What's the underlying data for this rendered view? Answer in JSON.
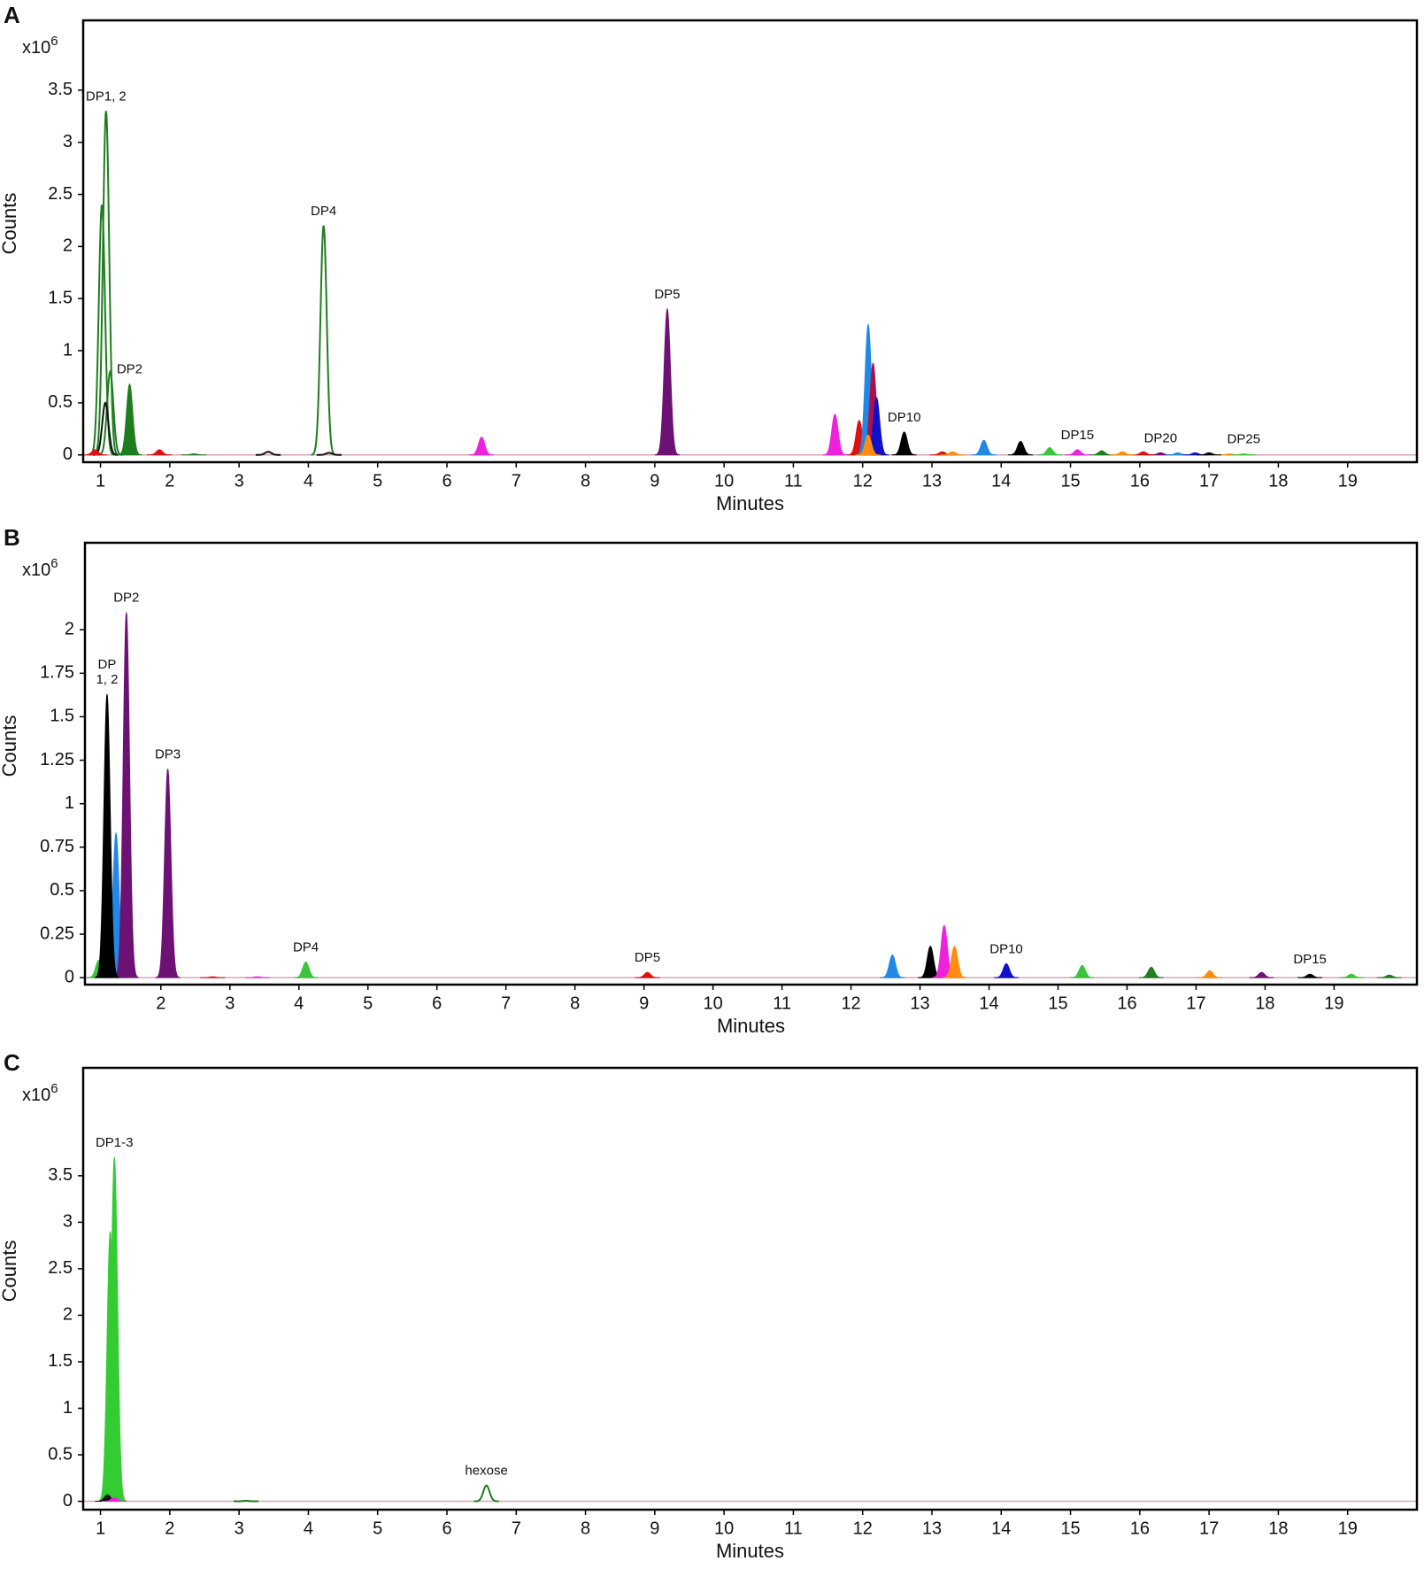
{
  "chart_data": [
    {
      "type": "chromatogram",
      "panel": "A",
      "xlabel": "Minutes",
      "ylabel": "Counts",
      "ylabel_unit": "x10",
      "ylabel_unit_power": "6",
      "xlim": [
        0.75,
        20
      ],
      "xticks": [
        1,
        2,
        3,
        4,
        5,
        6,
        7,
        8,
        9,
        10,
        11,
        12,
        13,
        14,
        15,
        16,
        17,
        18,
        19
      ],
      "ylim": [
        -0.07,
        4.17
      ],
      "yticks": [
        0,
        0.5,
        1,
        1.5,
        2,
        2.5,
        3,
        3.5
      ],
      "series": [
        {
          "color": "#1e7d1e",
          "filled": false,
          "x": [
            1.02,
            1.08,
            1.14,
            4.22
          ],
          "values": [
            2.4,
            3.3,
            0.8,
            2.2
          ]
        },
        {
          "color": "#111111",
          "filled": false,
          "x": [
            1.07,
            3.42,
            4.3
          ],
          "values": [
            0.5,
            0.03,
            0.02
          ]
        },
        {
          "color": "#1e7d1e",
          "filled": true,
          "x": [
            1.42,
            2.35,
            15.45
          ],
          "values": [
            0.68,
            0.01,
            0.04
          ]
        },
        {
          "color": "#6e1174",
          "filled": true,
          "x": [
            9.18,
            16.3
          ],
          "values": [
            1.4,
            0.02
          ]
        },
        {
          "color": "#ee22dd",
          "filled": true,
          "x": [
            6.5,
            11.6,
            15.1
          ],
          "values": [
            0.17,
            0.39,
            0.05
          ]
        },
        {
          "color": "#e01010",
          "filled": true,
          "x": [
            0.92,
            1.85,
            11.95,
            13.15,
            16.05
          ],
          "values": [
            0.05,
            0.05,
            0.33,
            0.03,
            0.03
          ]
        },
        {
          "color": "#2288e6",
          "filled": true,
          "x": [
            12.08,
            13.75,
            16.55
          ],
          "values": [
            1.25,
            0.14,
            0.02
          ]
        },
        {
          "color": "#b0104a",
          "filled": true,
          "x": [
            12.15
          ],
          "values": [
            0.88
          ]
        },
        {
          "color": "#1010cc",
          "filled": true,
          "x": [
            12.2,
            16.8
          ],
          "values": [
            0.55,
            0.02
          ]
        },
        {
          "color": "#ff8c10",
          "filled": true,
          "x": [
            12.08,
            13.3,
            15.75,
            17.3
          ],
          "values": [
            0.19,
            0.03,
            0.03,
            0.01
          ]
        },
        {
          "color": "#000000",
          "filled": true,
          "x": [
            12.6,
            14.28,
            17.0
          ],
          "values": [
            0.22,
            0.13,
            0.02
          ]
        },
        {
          "color": "#3cc43c",
          "filled": true,
          "x": [
            14.7,
            17.5
          ],
          "values": [
            0.07,
            0.01
          ]
        }
      ],
      "annotations": [
        {
          "text": "DP1, 2",
          "x": 1.08
        },
        {
          "text": "DP2",
          "x": 1.42
        },
        {
          "text": "DP4",
          "x": 4.22
        },
        {
          "text": "DP5",
          "x": 9.18
        },
        {
          "text": "DP10",
          "x": 12.6
        },
        {
          "text": "DP15",
          "x": 15.1
        },
        {
          "text": "DP20",
          "x": 16.3
        },
        {
          "text": "DP25",
          "x": 17.5
        }
      ]
    },
    {
      "type": "chromatogram",
      "panel": "B",
      "xlabel": "Minutes",
      "ylabel": "Counts",
      "ylabel_unit": "x10",
      "ylabel_unit_power": "6",
      "xlim": [
        0.9,
        20.2
      ],
      "xticks": [
        2,
        3,
        4,
        5,
        6,
        7,
        8,
        9,
        10,
        11,
        12,
        13,
        14,
        15,
        16,
        17,
        18,
        19
      ],
      "ylim": [
        -0.04,
        2.5
      ],
      "yticks": [
        0,
        0.25,
        0.5,
        0.75,
        1,
        1.25,
        1.5,
        1.75,
        2
      ],
      "series": [
        {
          "color": "#3cc43c",
          "filled": true,
          "x": [
            1.1,
            4.1,
            15.35,
            19.25
          ],
          "values": [
            0.1,
            0.09,
            0.07,
            0.02
          ]
        },
        {
          "color": "#2288e6",
          "filled": true,
          "x": [
            1.35,
            12.6
          ],
          "values": [
            0.83,
            0.13
          ]
        },
        {
          "color": "#6e1174",
          "filled": true,
          "x": [
            1.5,
            2.1,
            17.95
          ],
          "values": [
            2.1,
            1.2,
            0.03
          ]
        },
        {
          "color": "#000000",
          "filled": true,
          "x": [
            1.22,
            13.15,
            18.65
          ],
          "values": [
            1.63,
            0.18,
            0.02
          ]
        },
        {
          "color": "#ee22dd",
          "filled": true,
          "x": [
            3.4,
            13.35
          ],
          "values": [
            0.005,
            0.3
          ]
        },
        {
          "color": "#ff8c10",
          "filled": true,
          "x": [
            13.5,
            17.2
          ],
          "values": [
            0.18,
            0.04
          ]
        },
        {
          "color": "#e01010",
          "filled": true,
          "x": [
            2.75,
            9.05
          ],
          "values": [
            0.005,
            0.03
          ]
        },
        {
          "color": "#1010cc",
          "filled": true,
          "x": [
            14.25
          ],
          "values": [
            0.08
          ]
        },
        {
          "color": "#1e7d1e",
          "filled": true,
          "x": [
            16.35,
            19.8
          ],
          "values": [
            0.06,
            0.015
          ]
        }
      ],
      "annotations": [
        {
          "text": [
            "DP",
            "1, 2"
          ],
          "x": 1.22
        },
        {
          "text": "DP2",
          "x": 1.5
        },
        {
          "text": "DP3",
          "x": 2.1
        },
        {
          "text": "DP4",
          "x": 4.1
        },
        {
          "text": "DP5",
          "x": 9.05
        },
        {
          "text": "DP10",
          "x": 14.25
        },
        {
          "text": "DP15",
          "x": 18.65
        }
      ]
    },
    {
      "type": "chromatogram",
      "panel": "C",
      "xlabel": "Minutes",
      "ylabel": "Counts",
      "ylabel_unit": "x10",
      "ylabel_unit_power": "6",
      "xlim": [
        0.75,
        20
      ],
      "xticks": [
        1,
        2,
        3,
        4,
        5,
        6,
        7,
        8,
        9,
        10,
        11,
        12,
        13,
        14,
        15,
        16,
        17,
        18,
        19
      ],
      "ylim": [
        -0.09,
        4.66
      ],
      "yticks": [
        0,
        0.5,
        1,
        1.5,
        2,
        2.5,
        3,
        3.5
      ],
      "series": [
        {
          "color": "#33cc33",
          "filled": true,
          "x": [
            1.14,
            1.2
          ],
          "values": [
            2.9,
            3.7
          ]
        },
        {
          "color": "#111111",
          "filled": true,
          "x": [
            1.1
          ],
          "values": [
            0.07
          ]
        },
        {
          "color": "#ee22dd",
          "filled": true,
          "x": [
            1.2
          ],
          "values": [
            0.04
          ]
        },
        {
          "color": "#1e7d1e",
          "filled": false,
          "x": [
            3.1,
            6.57
          ],
          "values": [
            0.005,
            0.17
          ]
        }
      ],
      "annotations": [
        {
          "text": "DP1-3",
          "x": 1.2
        },
        {
          "text": "hexose",
          "x": 6.57
        }
      ]
    }
  ]
}
